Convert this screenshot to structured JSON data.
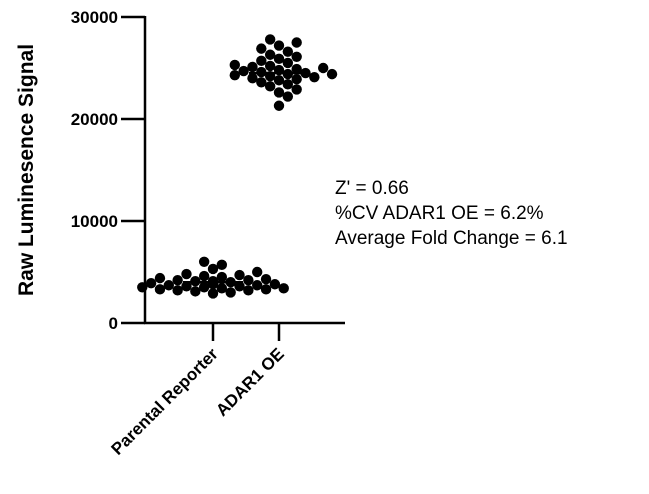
{
  "chart_data": {
    "type": "scatter",
    "subtype": "dot-plot",
    "ylabel": "Raw Luminesence Signal",
    "xlabel": "",
    "ylim": [
      0,
      30000
    ],
    "yticks": [
      0,
      10000,
      20000,
      30000
    ],
    "ytick_labels": [
      "0",
      "10000",
      "20000",
      "30000"
    ],
    "categories": [
      "Parental Reporter",
      "ADAR1 OE"
    ],
    "grid": false,
    "legend": "none",
    "point_color": "#000000",
    "series": [
      {
        "category": "Parental Reporter",
        "mean": 4000,
        "values": [
          2900,
          3000,
          3100,
          3200,
          3200,
          3300,
          3300,
          3400,
          3400,
          3500,
          3500,
          3600,
          3600,
          3700,
          3700,
          3800,
          3800,
          3900,
          3900,
          4000,
          4000,
          4000,
          4100,
          4100,
          4200,
          4200,
          4300,
          4400,
          4500,
          4600,
          4700,
          4800,
          5000,
          5300,
          5700,
          6000
        ]
      },
      {
        "category": "ADAR1 OE",
        "mean": 24500,
        "values": [
          21300,
          22200,
          22600,
          22900,
          23200,
          23400,
          23600,
          23800,
          23900,
          24000,
          24100,
          24200,
          24300,
          24400,
          24400,
          24500,
          24600,
          24700,
          24800,
          24900,
          25000,
          25100,
          25200,
          25300,
          25500,
          25700,
          25900,
          26100,
          26300,
          26600,
          26900,
          27200,
          27500,
          27800
        ]
      }
    ],
    "annotations": [
      "Z' = 0.66",
      "%CV ADAR1 OE = 6.2%",
      "Average Fold Change = 6.1"
    ]
  }
}
